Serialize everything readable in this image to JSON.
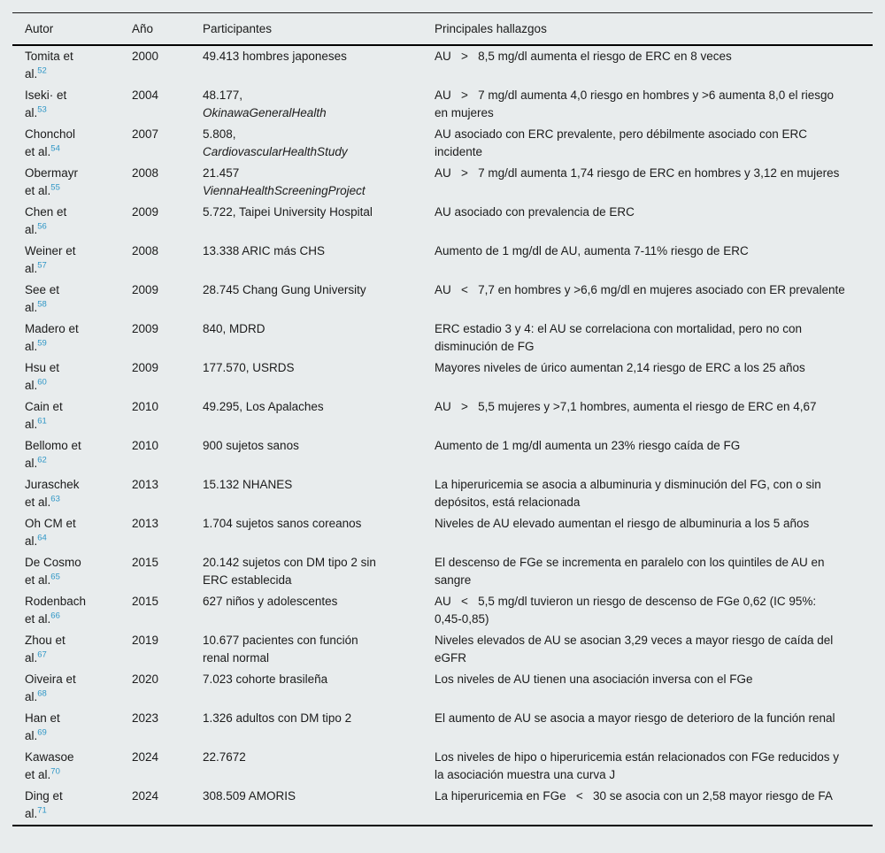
{
  "page": {
    "background_color": "#e8eced",
    "text_color": "#1b1b1b",
    "citation_link_color": "#2e96c6"
  },
  "table": {
    "columns": [
      "Autor",
      "Año",
      "Participantes",
      "Principales hallazgos"
    ],
    "rows": [
      {
        "author": "Tomita et al.",
        "ref": "52",
        "year": "2000",
        "participants": "49.413 hombres japoneses",
        "participants_italic": "",
        "findings": "AU   >   8,5 mg/dl aumenta el riesgo de ERC en 8 veces"
      },
      {
        "author": "Iseki· et al.",
        "ref": "53",
        "year": "2004",
        "participants": "48.177,",
        "participants_italic": "OkinawaGeneralHealth",
        "findings": "AU   >   7 mg/dl aumenta 4,0 riesgo en hombres y >6 aumenta 8,0 el riesgo en mujeres"
      },
      {
        "author": "Chonchol et al.",
        "ref": "54",
        "year": "2007",
        "participants": "5.808,",
        "participants_italic": "CardiovascularHealthStudy",
        "findings": "AU asociado con ERC prevalente, pero débilmente asociado con ERC incidente"
      },
      {
        "author": "Obermayr et al.",
        "ref": "55",
        "year": "2008",
        "participants": "21.457",
        "participants_italic": "ViennaHealthScreeningProject",
        "findings": "AU   >   7 mg/dl aumenta 1,74 riesgo de ERC en hombres y 3,12 en mujeres"
      },
      {
        "author": "Chen et al.",
        "ref": "56",
        "year": "2009",
        "participants": "5.722, Taipei University Hospital",
        "participants_italic": "",
        "findings": "AU asociado con prevalencia de ERC"
      },
      {
        "author": "Weiner et al.",
        "ref": "57",
        "year": "2008",
        "participants": "13.338 ARIC más CHS",
        "participants_italic": "",
        "findings": "Aumento de 1 mg/dl de AU, aumenta 7-11% riesgo de ERC"
      },
      {
        "author": "See et al.",
        "ref": "58",
        "year": "2009",
        "participants": "28.745 Chang Gung University",
        "participants_italic": "",
        "findings": "AU   <   7,7 en hombres y >6,6 mg/dl en mujeres asociado con ER prevalente"
      },
      {
        "author": "Madero et al.",
        "ref": "59",
        "year": "2009",
        "participants": "840, MDRD",
        "participants_italic": "",
        "findings": "ERC estadio 3 y 4: el AU se correlaciona con mortalidad, pero no con disminución de FG"
      },
      {
        "author": "Hsu et al.",
        "ref": "60",
        "year": "2009",
        "participants": "177.570, USRDS",
        "participants_italic": "",
        "findings": "Mayores niveles de úrico aumentan 2,14 riesgo de ERC a los 25 años"
      },
      {
        "author": "Cain et al.",
        "ref": "61",
        "year": "2010",
        "participants": "49.295, Los Apalaches",
        "participants_italic": "",
        "findings": "AU   >   5,5 mujeres y >7,1 hombres, aumenta el riesgo de ERC en 4,67"
      },
      {
        "author": "Bellomo et al.",
        "ref": "62",
        "year": "2010",
        "participants": "900 sujetos sanos",
        "participants_italic": "",
        "findings": "Aumento de 1 mg/dl aumenta un 23% riesgo caída de FG"
      },
      {
        "author": "Juraschek et al.",
        "ref": "63",
        "year": "2013",
        "participants": "15.132 NHANES",
        "participants_italic": "",
        "findings": "La hiperuricemia se asocia a albuminuria y disminución del FG, con o sin depósitos, está relacionada"
      },
      {
        "author": "Oh CM et al.",
        "ref": "64",
        "year": "2013",
        "participants": "1.704 sujetos sanos coreanos",
        "participants_italic": "",
        "findings": "Niveles de AU elevado aumentan el riesgo de albuminuria a los 5 años"
      },
      {
        "author": "De Cosmo et al.",
        "ref": "65",
        "year": "2015",
        "participants": "20.142 sujetos con DM tipo 2 sin ERC establecida",
        "participants_italic": "",
        "findings": "El descenso de FGe se incrementa en paralelo con los quintiles de AU en sangre"
      },
      {
        "author": "Rodenbach et al.",
        "ref": "66",
        "year": "2015",
        "participants": "627 niños y adolescentes",
        "participants_italic": "",
        "findings": "AU   <   5,5 mg/dl tuvieron un riesgo de descenso de FGe 0,62 (IC 95%: 0,45-0,85)"
      },
      {
        "author": "Zhou et al.",
        "ref": "67",
        "year": "2019",
        "participants": "10.677 pacientes con función renal normal",
        "participants_italic": "",
        "findings": "Niveles elevados de AU se asocian 3,29 veces a mayor riesgo de caída del eGFR"
      },
      {
        "author": "Oiveira et al.",
        "ref": "68",
        "year": "2020",
        "participants": "7.023 cohorte brasileña",
        "participants_italic": "",
        "findings": "Los niveles de AU tienen una asociación inversa con el FGe"
      },
      {
        "author": "Han et al.",
        "ref": "69",
        "year": "2023",
        "participants": "1.326 adultos con DM tipo 2",
        "participants_italic": "",
        "findings": "El aumento de AU se asocia a mayor riesgo de deterioro de la función renal"
      },
      {
        "author": "Kawasoe et al.",
        "ref": "70",
        "year": "2024",
        "participants": "22.7672",
        "participants_italic": "",
        "findings": "Los niveles de hipo o hiperuricemia están relacionados con FGe reducidos y la asociación muestra una curva J"
      },
      {
        "author": "Ding et al.",
        "ref": "71",
        "year": "2024",
        "participants": "308.509 AMORIS",
        "participants_italic": "",
        "findings": "La hiperuricemia en FGe   <   30 se asocia con un 2,58 mayor riesgo de FA"
      }
    ]
  }
}
